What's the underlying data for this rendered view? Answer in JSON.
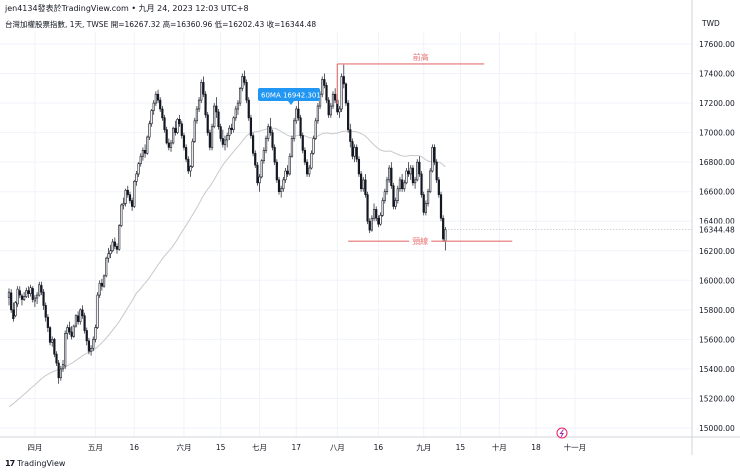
{
  "header": {
    "title": "jen4134發表於TradingView.com • 九月 24, 2023 12:03 UTC+8",
    "symbol": "台灣加權股票指數, 1天, TWSE",
    "open": "開=16267.32",
    "high": "高=16360.96",
    "low": "低=16202.43",
    "close": "收=16344.48",
    "currency": "TWD"
  },
  "footer": {
    "brand": "TradingView",
    "logo": "17"
  },
  "colors": {
    "grid": "#f0f3fa",
    "line": "#e57373",
    "label_bg": "#2196f3",
    "ma": "#c9c9c9",
    "candle": "#131722"
  },
  "chart_data": {
    "type": "candlestick",
    "ylim": [
      14930,
      17780
    ],
    "y_ticks": [
      15000,
      15200,
      15400,
      15600,
      15800,
      16000,
      16200,
      16400,
      16600,
      16800,
      17000,
      17200,
      17400,
      17600
    ],
    "y_tick_labels": [
      "15000.00",
      "15200.00",
      "15400.00",
      "15600.00",
      "15800.00",
      "16000.00",
      "16200.00",
      "16400.00",
      "16600.00",
      "16800.00",
      "17000.00",
      "17200.00",
      "17400.00",
      "17600.00"
    ],
    "x_ticks": [
      {
        "label": "四月",
        "i": 12
      },
      {
        "label": "五月",
        "i": 40
      },
      {
        "label": "16",
        "i": 58
      },
      {
        "label": "六月",
        "i": 81
      },
      {
        "label": "15",
        "i": 98
      },
      {
        "label": "七月",
        "i": 116
      },
      {
        "label": "17",
        "i": 133
      },
      {
        "label": "八月",
        "i": 152
      },
      {
        "label": "16",
        "i": 171
      },
      {
        "label": "九月",
        "i": 192
      },
      {
        "label": "15",
        "i": 209
      },
      {
        "label": "十月",
        "i": 227
      },
      {
        "label": "18",
        "i": 244
      },
      {
        "label": "十一月",
        "i": 262
      }
    ],
    "last_price": {
      "value": 16344.48,
      "label": "16344.48"
    },
    "ma_label": "60MA 16942.301",
    "annotations": [
      {
        "label": "前高",
        "value": 17465,
        "i_start": 152,
        "i_end": 220
      },
      {
        "label": "頸線",
        "value": 16265,
        "i_start": 157,
        "i_end": 233
      }
    ],
    "candles": [
      [
        15885,
        15945,
        15830,
        15920
      ],
      [
        15915,
        15940,
        15780,
        15800
      ],
      [
        15800,
        15850,
        15720,
        15740
      ],
      [
        15760,
        15860,
        15750,
        15850
      ],
      [
        15840,
        15960,
        15820,
        15940
      ],
      [
        15930,
        15960,
        15880,
        15900
      ],
      [
        15895,
        15910,
        15830,
        15870
      ],
      [
        15870,
        15920,
        15860,
        15890
      ],
      [
        15890,
        15950,
        15880,
        15930
      ],
      [
        15930,
        15960,
        15880,
        15910
      ],
      [
        15910,
        15970,
        15890,
        15950
      ],
      [
        15945,
        15960,
        15850,
        15870
      ],
      [
        15860,
        15900,
        15820,
        15880
      ],
      [
        15880,
        15920,
        15840,
        15900
      ],
      [
        15900,
        15990,
        15890,
        15970
      ],
      [
        15965,
        15990,
        15900,
        15920
      ],
      [
        15920,
        15940,
        15800,
        15830
      ],
      [
        15830,
        15850,
        15720,
        15750
      ],
      [
        15750,
        15770,
        15650,
        15680
      ],
      [
        15680,
        15690,
        15560,
        15580
      ],
      [
        15580,
        15620,
        15550,
        15600
      ],
      [
        15600,
        15610,
        15480,
        15500
      ],
      [
        15500,
        15520,
        15420,
        15440
      ],
      [
        15440,
        15460,
        15300,
        15340
      ],
      [
        15340,
        15420,
        15320,
        15400
      ],
      [
        15400,
        15460,
        15380,
        15430
      ],
      [
        15420,
        15660,
        15400,
        15640
      ],
      [
        15640,
        15700,
        15600,
        15680
      ],
      [
        15680,
        15720,
        15630,
        15650
      ],
      [
        15650,
        15690,
        15600,
        15620
      ],
      [
        15620,
        15700,
        15610,
        15690
      ],
      [
        15690,
        15770,
        15680,
        15760
      ],
      [
        15760,
        15790,
        15700,
        15720
      ],
      [
        15720,
        15810,
        15700,
        15800
      ],
      [
        15800,
        15830,
        15740,
        15760
      ],
      [
        15760,
        15780,
        15640,
        15660
      ],
      [
        15660,
        15680,
        15560,
        15590
      ],
      [
        15590,
        15610,
        15500,
        15520
      ],
      [
        15520,
        15560,
        15490,
        15540
      ],
      [
        15540,
        15620,
        15520,
        15600
      ],
      [
        15600,
        15700,
        15580,
        15680
      ],
      [
        15680,
        15920,
        15670,
        15900
      ],
      [
        15900,
        16000,
        15880,
        15980
      ],
      [
        15980,
        16010,
        15930,
        15960
      ],
      [
        15960,
        16040,
        15950,
        16030
      ],
      [
        16030,
        16160,
        16020,
        16150
      ],
      [
        16150,
        16220,
        16120,
        16180
      ],
      [
        16180,
        16240,
        16150,
        16200
      ],
      [
        16200,
        16280,
        16190,
        16260
      ],
      [
        16260,
        16290,
        16210,
        16230
      ],
      [
        16230,
        16250,
        16180,
        16210
      ],
      [
        16210,
        16380,
        16200,
        16370
      ],
      [
        16370,
        16520,
        16360,
        16510
      ],
      [
        16510,
        16560,
        16480,
        16520
      ],
      [
        16520,
        16620,
        16500,
        16610
      ],
      [
        16610,
        16640,
        16560,
        16580
      ],
      [
        16580,
        16600,
        16520,
        16540
      ],
      [
        16540,
        16560,
        16470,
        16500
      ],
      [
        16500,
        16680,
        16490,
        16670
      ],
      [
        16670,
        16740,
        16640,
        16720
      ],
      [
        16720,
        16800,
        16700,
        16790
      ],
      [
        16790,
        16860,
        16770,
        16840
      ],
      [
        16840,
        16900,
        16810,
        16880
      ],
      [
        16880,
        16920,
        16830,
        16860
      ],
      [
        16860,
        16980,
        16850,
        16970
      ],
      [
        16970,
        17080,
        16950,
        17060
      ],
      [
        17060,
        17160,
        17040,
        17150
      ],
      [
        17150,
        17220,
        17120,
        17200
      ],
      [
        17200,
        17280,
        17180,
        17260
      ],
      [
        17260,
        17290,
        17200,
        17220
      ],
      [
        17220,
        17240,
        17140,
        17160
      ],
      [
        17160,
        17180,
        17080,
        17100
      ],
      [
        17100,
        17120,
        17000,
        17020
      ],
      [
        17020,
        17040,
        16920,
        16930
      ],
      [
        16930,
        16960,
        16880,
        16900
      ],
      [
        16900,
        16950,
        16870,
        16930
      ],
      [
        16930,
        17040,
        16920,
        17030
      ],
      [
        17030,
        17080,
        16980,
        17000
      ],
      [
        17000,
        17100,
        16990,
        17090
      ],
      [
        17090,
        17120,
        17040,
        17060
      ],
      [
        17060,
        17080,
        16960,
        16980
      ],
      [
        16980,
        17000,
        16880,
        16900
      ],
      [
        16900,
        16920,
        16800,
        16820
      ],
      [
        16820,
        16840,
        16720,
        16740
      ],
      [
        16740,
        16780,
        16700,
        16770
      ],
      [
        16770,
        16960,
        16760,
        16940
      ],
      [
        16940,
        17100,
        16930,
        17080
      ],
      [
        17080,
        17180,
        17060,
        17160
      ],
      [
        17160,
        17240,
        17140,
        17220
      ],
      [
        17220,
        17360,
        17200,
        17340
      ],
      [
        17340,
        17380,
        17240,
        17260
      ],
      [
        17260,
        17280,
        17100,
        17120
      ],
      [
        17120,
        17140,
        16980,
        17000
      ],
      [
        17000,
        17020,
        16880,
        16900
      ],
      [
        16900,
        17060,
        16880,
        17040
      ],
      [
        17040,
        17200,
        17030,
        17180
      ],
      [
        17180,
        17240,
        17100,
        17140
      ],
      [
        17140,
        17160,
        17020,
        17040
      ],
      [
        17040,
        17060,
        16940,
        16960
      ],
      [
        16960,
        17020,
        16900,
        16920
      ],
      [
        16920,
        16980,
        16880,
        16950
      ],
      [
        16950,
        17000,
        16900,
        16980
      ],
      [
        16980,
        17050,
        16950,
        17030
      ],
      [
        17030,
        17060,
        16990,
        17020
      ],
      [
        17020,
        17110,
        17000,
        17100
      ],
      [
        17100,
        17180,
        17080,
        17160
      ],
      [
        17160,
        17220,
        17120,
        17200
      ],
      [
        17200,
        17310,
        17180,
        17300
      ],
      [
        17300,
        17400,
        17280,
        17380
      ],
      [
        17380,
        17420,
        17320,
        17340
      ],
      [
        17340,
        17360,
        17200,
        17220
      ],
      [
        17220,
        17240,
        17080,
        17100
      ],
      [
        17100,
        17120,
        16960,
        16980
      ],
      [
        16980,
        17000,
        16840,
        16860
      ],
      [
        16860,
        16880,
        16760,
        16780
      ],
      [
        16780,
        16800,
        16640,
        16660
      ],
      [
        16660,
        16720,
        16600,
        16700
      ],
      [
        16700,
        16820,
        16690,
        16810
      ],
      [
        16810,
        16900,
        16790,
        16880
      ],
      [
        16880,
        16980,
        16860,
        16960
      ],
      [
        16960,
        17060,
        16940,
        17040
      ],
      [
        17040,
        17100,
        16980,
        17000
      ],
      [
        17000,
        17020,
        16880,
        16900
      ],
      [
        16900,
        16920,
        16780,
        16800
      ],
      [
        16800,
        16820,
        16660,
        16680
      ],
      [
        16680,
        16700,
        16580,
        16600
      ],
      [
        16600,
        16640,
        16560,
        16620
      ],
      [
        16620,
        16700,
        16600,
        16680
      ],
      [
        16680,
        16760,
        16660,
        16740
      ],
      [
        16740,
        16780,
        16700,
        16720
      ],
      [
        16720,
        16860,
        16710,
        16840
      ],
      [
        16840,
        16980,
        16830,
        16960
      ],
      [
        16960,
        17100,
        16940,
        17080
      ],
      [
        17080,
        17180,
        17060,
        17160
      ],
      [
        17160,
        17220,
        17080,
        17100
      ],
      [
        17100,
        17120,
        16960,
        16980
      ],
      [
        16980,
        17000,
        16860,
        16880
      ],
      [
        16880,
        16900,
        16780,
        16800
      ],
      [
        16800,
        16820,
        16700,
        16720
      ],
      [
        16720,
        16780,
        16700,
        16760
      ],
      [
        16760,
        16880,
        16750,
        16860
      ],
      [
        16860,
        16980,
        16850,
        16960
      ],
      [
        16960,
        17100,
        16950,
        17080
      ],
      [
        17080,
        17200,
        17060,
        17180
      ],
      [
        17180,
        17280,
        17160,
        17260
      ],
      [
        17260,
        17380,
        17240,
        17360
      ],
      [
        17360,
        17400,
        17300,
        17320
      ],
      [
        17320,
        17340,
        17200,
        17220
      ],
      [
        17220,
        17240,
        17100,
        17120
      ],
      [
        17120,
        17200,
        17100,
        17180
      ],
      [
        17180,
        17280,
        17160,
        17260
      ],
      [
        17260,
        17300,
        17200,
        17220
      ],
      [
        17220,
        17240,
        17120,
        17140
      ],
      [
        17140,
        17180,
        17100,
        17160
      ],
      [
        17160,
        17400,
        17140,
        17380
      ],
      [
        17380,
        17460,
        17300,
        17330
      ],
      [
        17330,
        17340,
        17180,
        17200
      ],
      [
        17200,
        17220,
        17000,
        17020
      ],
      [
        17020,
        17060,
        16900,
        16940
      ],
      [
        16940,
        16960,
        16820,
        16840
      ],
      [
        16840,
        16920,
        16800,
        16900
      ],
      [
        16900,
        16920,
        16800,
        16820
      ],
      [
        16820,
        16840,
        16700,
        16720
      ],
      [
        16720,
        16740,
        16600,
        16620
      ],
      [
        16620,
        16700,
        16600,
        16680
      ],
      [
        16680,
        16720,
        16560,
        16580
      ],
      [
        16580,
        16600,
        16380,
        16400
      ],
      [
        16400,
        16420,
        16320,
        16340
      ],
      [
        16340,
        16440,
        16330,
        16420
      ],
      [
        16420,
        16520,
        16400,
        16480
      ],
      [
        16480,
        16500,
        16400,
        16420
      ],
      [
        16420,
        16440,
        16360,
        16380
      ],
      [
        16380,
        16460,
        16370,
        16440
      ],
      [
        16440,
        16560,
        16430,
        16540
      ],
      [
        16540,
        16620,
        16520,
        16600
      ],
      [
        16600,
        16700,
        16580,
        16680
      ],
      [
        16680,
        16780,
        16660,
        16760
      ],
      [
        16760,
        16800,
        16620,
        16640
      ],
      [
        16640,
        16660,
        16480,
        16500
      ],
      [
        16500,
        16560,
        16480,
        16540
      ],
      [
        16540,
        16640,
        16520,
        16620
      ],
      [
        16620,
        16700,
        16600,
        16680
      ],
      [
        16680,
        16720,
        16600,
        16620
      ],
      [
        16620,
        16680,
        16600,
        16660
      ],
      [
        16660,
        16760,
        16650,
        16740
      ],
      [
        16740,
        16800,
        16700,
        16720
      ],
      [
        16720,
        16780,
        16680,
        16760
      ],
      [
        16760,
        16780,
        16640,
        16660
      ],
      [
        16660,
        16700,
        16620,
        16680
      ],
      [
        16680,
        16820,
        16670,
        16800
      ],
      [
        16800,
        16840,
        16700,
        16720
      ],
      [
        16720,
        16740,
        16560,
        16580
      ],
      [
        16580,
        16600,
        16440,
        16460
      ],
      [
        16460,
        16540,
        16440,
        16520
      ],
      [
        16520,
        16620,
        16500,
        16600
      ],
      [
        16600,
        16760,
        16590,
        16740
      ],
      [
        16740,
        16920,
        16730,
        16900
      ],
      [
        16900,
        16920,
        16780,
        16800
      ],
      [
        16800,
        16820,
        16660,
        16680
      ],
      [
        16680,
        16700,
        16560,
        16580
      ],
      [
        16580,
        16600,
        16400,
        16420
      ],
      [
        16420,
        16440,
        16260,
        16280
      ],
      [
        16267,
        16361,
        16202,
        16344
      ]
    ]
  }
}
